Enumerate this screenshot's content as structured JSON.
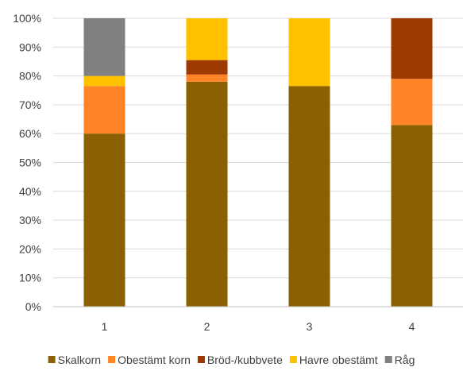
{
  "chart_data": {
    "type": "bar",
    "stacked": true,
    "normalized": true,
    "categories": [
      "1",
      "2",
      "3",
      "4"
    ],
    "y_ticks": [
      "0%",
      "10%",
      "20%",
      "30%",
      "40%",
      "50%",
      "60%",
      "70%",
      "80%",
      "90%",
      "100%"
    ],
    "ylim": [
      0,
      100
    ],
    "grid": true,
    "legend_position": "bottom",
    "series": [
      {
        "name": "Skalkorn",
        "color": "#8B6000",
        "values": [
          60,
          78,
          76.5,
          63
        ]
      },
      {
        "name": "Obestämt korn",
        "color": "#FF8426",
        "values": [
          16.5,
          2.5,
          0,
          16
        ]
      },
      {
        "name": "Bröd-/kubbvete",
        "color": "#9E3900",
        "values": [
          0,
          5,
          0,
          21
        ]
      },
      {
        "name": "Havre obestämt",
        "color": "#FFC000",
        "values": [
          3.5,
          14.5,
          23.5,
          0
        ]
      },
      {
        "name": "Råg",
        "color": "#808080",
        "values": [
          20,
          0,
          0,
          0
        ]
      }
    ]
  }
}
